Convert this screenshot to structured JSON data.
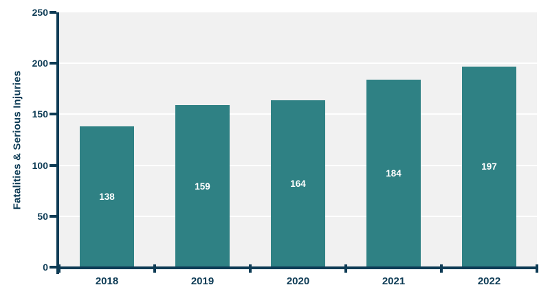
{
  "chart_data": {
    "type": "bar",
    "title": "",
    "xlabel": "",
    "ylabel": "Fatalities & Serious Injuries",
    "categories": [
      "2018",
      "2019",
      "2020",
      "2021",
      "2022"
    ],
    "values": [
      138,
      159,
      164,
      184,
      197
    ],
    "value_labels": [
      "138",
      "159",
      "164",
      "184",
      "197"
    ],
    "ylim": [
      0,
      250
    ],
    "yticks": [
      0,
      50,
      100,
      150,
      200,
      250
    ],
    "grid": true,
    "legend": false,
    "colors": {
      "bar": "#2F8184",
      "axis": "#0D3B55",
      "tick_text": "#0D3B55",
      "plot_background": "#F1F1F1",
      "gridline": "#FFFFFF",
      "bar_value_text": "#FFFFFF",
      "page_background": "#FFFFFF"
    }
  }
}
